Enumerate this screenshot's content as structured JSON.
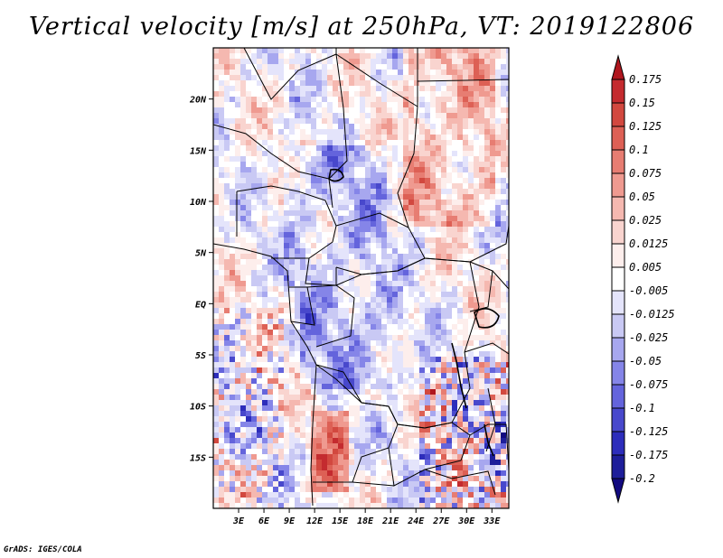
{
  "title": "Vertical velocity [m/s] at 250hPa, VT: 2019122806",
  "credit": "GrADS: IGES/COLA",
  "map": {
    "lon_range": [
      0,
      35
    ],
    "lat_range": [
      -20,
      25
    ],
    "lat_labels": [
      "20N",
      "15N",
      "10N",
      "5N",
      "EQ",
      "5S",
      "10S",
      "15S"
    ],
    "lat_values": [
      20,
      15,
      10,
      5,
      0,
      -5,
      -10,
      -15
    ],
    "lon_labels": [
      "3E",
      "6E",
      "9E",
      "12E",
      "15E",
      "18E",
      "21E",
      "24E",
      "27E",
      "30E",
      "33E"
    ],
    "lon_values": [
      3,
      6,
      9,
      12,
      15,
      18,
      21,
      24,
      27,
      30,
      33
    ],
    "field": "vertical velocity",
    "level": "250hPa",
    "valid_time": "2019122806"
  },
  "colorbar": {
    "labels": [
      "0.175",
      "0.15",
      "0.125",
      "0.1",
      "0.075",
      "0.05",
      "0.025",
      "0.0125",
      "0.005",
      "-0.005",
      "-0.0125",
      "-0.025",
      "-0.05",
      "-0.075",
      "-0.1",
      "-0.125",
      "-0.175",
      "-0.2"
    ],
    "colors": [
      "#b0161e",
      "#c42b2f",
      "#d2483f",
      "#dd6055",
      "#e77d72",
      "#ef9a90",
      "#f5b8b0",
      "#f9d4cf",
      "#fdeeec",
      "#ffffff",
      "#e4e4fb",
      "#c9c9f4",
      "#a7a7ef",
      "#8585e8",
      "#6464dc",
      "#4848cc",
      "#2d2dbb",
      "#1e1e9a",
      "#120a80"
    ]
  },
  "colors": {
    "frame": "#000000",
    "border": "#000000"
  }
}
